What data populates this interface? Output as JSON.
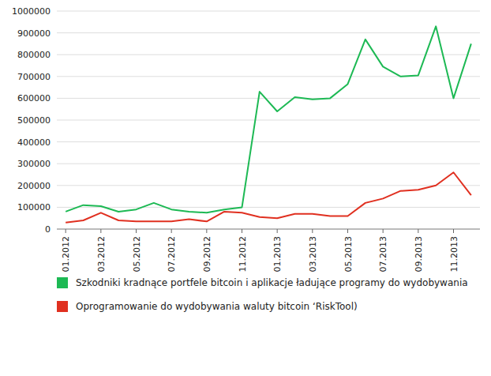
{
  "chart_data": {
    "type": "line",
    "categories": [
      "01.2012",
      null,
      "03.2012",
      null,
      "05.2012",
      null,
      "07.2012",
      null,
      "09.2012",
      null,
      "11.2012",
      null,
      "01.2013",
      null,
      "03.2013",
      null,
      "05.2013",
      null,
      "07.2013",
      null,
      "09.2013",
      null,
      "11.2013",
      null
    ],
    "series": [
      {
        "name": "Szkodniki kradnące portfele bitcoin i aplikacje ładujące programy do wydobywania",
        "color": "#1db954",
        "values": [
          80000,
          110000,
          105000,
          80000,
          90000,
          120000,
          90000,
          80000,
          75000,
          90000,
          100000,
          630000,
          540000,
          605000,
          595000,
          600000,
          665000,
          870000,
          745000,
          700000,
          705000,
          930000,
          600000,
          850000
        ]
      },
      {
        "name": "Oprogramowanie do wydobywania waluty bitcoin ‘RiskTool)",
        "color": "#e03020",
        "values": [
          30000,
          40000,
          75000,
          40000,
          35000,
          35000,
          35000,
          45000,
          35000,
          80000,
          75000,
          55000,
          50000,
          70000,
          70000,
          60000,
          60000,
          120000,
          140000,
          175000,
          180000,
          200000,
          260000,
          155000
        ]
      }
    ],
    "ylim": [
      0,
      1000000
    ],
    "yticks": [
      0,
      100000,
      200000,
      300000,
      400000,
      500000,
      600000,
      700000,
      800000,
      900000,
      1000000
    ],
    "grid": true,
    "legend": "bottom"
  }
}
